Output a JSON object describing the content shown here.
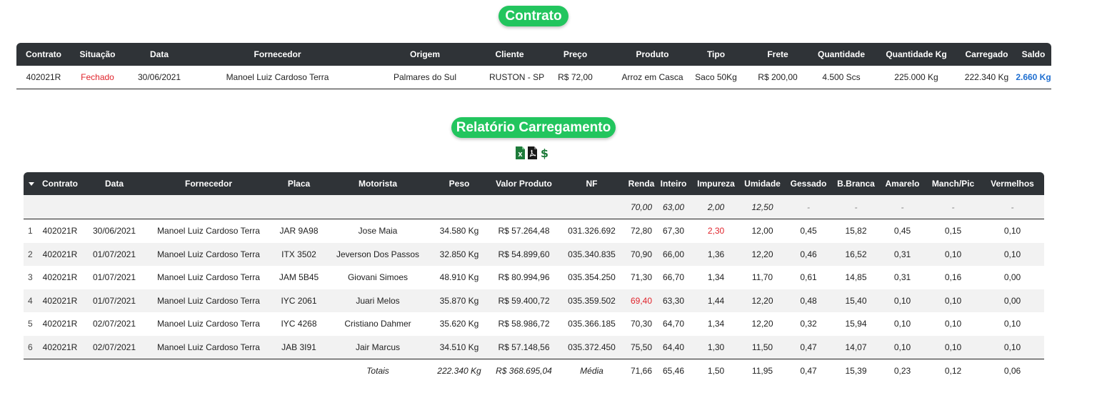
{
  "contract_section": {
    "title": "Contrato",
    "headers": [
      "Contrato",
      "Situação",
      "Data",
      "Fornecedor",
      "Origem",
      "Cliente",
      "Preço",
      "Produto",
      "Tipo",
      "Frete",
      "Quantidade",
      "Quantidade Kg",
      "Carregado",
      "Saldo"
    ],
    "row": {
      "contrato": "402021R",
      "situacao": "Fechado",
      "data": "30/06/2021",
      "fornecedor": "Manoel Luiz Cardoso Terra",
      "origem": "Palmares do Sul",
      "cliente": "RUSTON - SP",
      "preco": "R$ 72,00",
      "produto": "Arroz em Casca",
      "tipo": "Saco 50Kg",
      "frete": "R$ 200,00",
      "quantidade": "4.500 Scs",
      "quantidade_kg": "225.000 Kg",
      "carregado": "222.340 Kg",
      "saldo": "2.660 Kg"
    },
    "colors": {
      "situacao": "#e0242c",
      "saldo": "#1f6fd1"
    }
  },
  "report_section": {
    "title": "Relatório Carregamento",
    "export_icons": [
      "excel-icon",
      "pdf-icon",
      "dollar-icon"
    ],
    "headers": [
      "Contrato",
      "Data",
      "Fornecedor",
      "Placa",
      "Motorista",
      "Peso",
      "Valor Produto",
      "NF",
      "Renda",
      "Inteiro",
      "Impureza",
      "Umidade",
      "Gessado",
      "B.Branca",
      "Amarelo",
      "Manch/Pic",
      "Vermelhos"
    ],
    "reference": {
      "renda": "70,00",
      "inteiro": "63,00",
      "impureza": "2,00",
      "umidade": "12,50",
      "gessado": "-",
      "bbranca": "-",
      "amarelo": "-",
      "manchpic": "-",
      "vermelhos": "-"
    },
    "rows": [
      {
        "idx": "1",
        "contrato": "402021R",
        "data": "30/06/2021",
        "fornecedor": "Manoel Luiz Cardoso Terra",
        "placa": "JAR 9A98",
        "motorista": "Jose Maia",
        "peso": "34.580 Kg",
        "valor": "R$ 57.264,48",
        "nf": "031.326.692",
        "renda": "72,80",
        "inteiro": "67,30",
        "impureza": "2,30",
        "umidade": "12,00",
        "gessado": "0,45",
        "bbranca": "15,82",
        "amarelo": "0,45",
        "manchpic": "0,15",
        "vermelhos": "0,10"
      },
      {
        "idx": "2",
        "contrato": "402021R",
        "data": "01/07/2021",
        "fornecedor": "Manoel Luiz Cardoso Terra",
        "placa": "ITX 3502",
        "motorista": "Jeverson Dos Passos",
        "peso": "32.850 Kg",
        "valor": "R$ 54.899,60",
        "nf": "035.340.835",
        "renda": "70,90",
        "inteiro": "66,00",
        "impureza": "1,36",
        "umidade": "12,20",
        "gessado": "0,46",
        "bbranca": "16,52",
        "amarelo": "0,31",
        "manchpic": "0,10",
        "vermelhos": "0,10"
      },
      {
        "idx": "3",
        "contrato": "402021R",
        "data": "01/07/2021",
        "fornecedor": "Manoel Luiz Cardoso Terra",
        "placa": "JAM 5B45",
        "motorista": "Giovani Simoes",
        "peso": "48.910 Kg",
        "valor": "R$ 80.994,96",
        "nf": "035.354.250",
        "renda": "71,30",
        "inteiro": "66,70",
        "impureza": "1,34",
        "umidade": "11,70",
        "gessado": "0,61",
        "bbranca": "14,85",
        "amarelo": "0,31",
        "manchpic": "0,16",
        "vermelhos": "0,00"
      },
      {
        "idx": "4",
        "contrato": "402021R",
        "data": "01/07/2021",
        "fornecedor": "Manoel Luiz Cardoso Terra",
        "placa": "IYC 2061",
        "motorista": "Juari Melos",
        "peso": "35.870 Kg",
        "valor": "R$ 59.400,72",
        "nf": "035.359.502",
        "renda": "69,40",
        "inteiro": "63,30",
        "impureza": "1,44",
        "umidade": "12,20",
        "gessado": "0,48",
        "bbranca": "15,40",
        "amarelo": "0,10",
        "manchpic": "0,10",
        "vermelhos": "0,00"
      },
      {
        "idx": "5",
        "contrato": "402021R",
        "data": "02/07/2021",
        "fornecedor": "Manoel Luiz Cardoso Terra",
        "placa": "IYC 4268",
        "motorista": "Cristiano Dahmer",
        "peso": "35.620 Kg",
        "valor": "R$ 58.986,72",
        "nf": "035.366.185",
        "renda": "70,30",
        "inteiro": "64,70",
        "impureza": "1,34",
        "umidade": "12,20",
        "gessado": "0,32",
        "bbranca": "15,94",
        "amarelo": "0,10",
        "manchpic": "0,10",
        "vermelhos": "0,10"
      },
      {
        "idx": "6",
        "contrato": "402021R",
        "data": "02/07/2021",
        "fornecedor": "Manoel Luiz Cardoso Terra",
        "placa": "JAB 3I91",
        "motorista": "Jair Marcus",
        "peso": "34.510 Kg",
        "valor": "R$ 57.148,56",
        "nf": "035.372.450",
        "renda": "75,50",
        "inteiro": "64,40",
        "impureza": "1,30",
        "umidade": "11,50",
        "gessado": "0,47",
        "bbranca": "14,07",
        "amarelo": "0,10",
        "manchpic": "0,10",
        "vermelhos": "0,10"
      }
    ],
    "highlight": {
      "row0_impureza": true,
      "row3_renda": true,
      "color": "#e0242c"
    },
    "totals": {
      "label": "Totais",
      "peso": "222.340 Kg",
      "valor": "R$ 368.695,04",
      "media_label": "Média",
      "renda": "71,66",
      "inteiro": "65,46",
      "impureza": "1,50",
      "umidade": "11,95",
      "gessado": "0,47",
      "bbranca": "15,39",
      "amarelo": "0,23",
      "manchpic": "0,12",
      "vermelhos": "0,06"
    }
  }
}
